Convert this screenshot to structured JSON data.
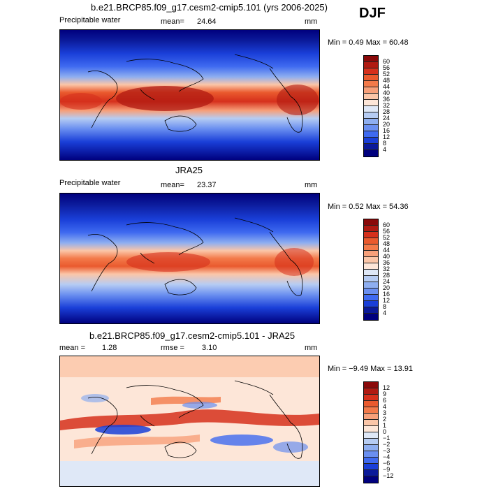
{
  "season": "DJF",
  "panels": [
    {
      "title": "b.e21.BRCP85.f09_g17.cesm2-cmip5.101 (yrs 2006-2025)",
      "left_label": "Precipitable water",
      "mid_label": "mean=",
      "mid_value": "24.64",
      "units": "mm",
      "minmax": "Min =    0.49 Max =   60.48",
      "colorbar": {
        "levels": [
          "60",
          "56",
          "52",
          "48",
          "44",
          "40",
          "36",
          "32",
          "28",
          "24",
          "20",
          "16",
          "12",
          "8",
          "4"
        ],
        "colors": [
          "#8a0a0a",
          "#b01a12",
          "#d6301c",
          "#ea5a2e",
          "#f37a4a",
          "#f7a07a",
          "#fbc6a8",
          "#fde6d8",
          "#dfe8f7",
          "#b6ccf3",
          "#8eaef0",
          "#6a8ff0",
          "#3f6af0",
          "#1a3fd8",
          "#0b1a9a",
          "#00007e"
        ]
      }
    },
    {
      "title": "JRA25",
      "left_label": "Precipitable water",
      "mid_label": "mean=",
      "mid_value": "23.37",
      "units": "mm",
      "minmax": "Min =    0.52 Max =   54.36",
      "colorbar": {
        "levels": [
          "60",
          "56",
          "52",
          "48",
          "44",
          "40",
          "36",
          "32",
          "28",
          "24",
          "20",
          "16",
          "12",
          "8",
          "4"
        ],
        "colors": [
          "#8a0a0a",
          "#b01a12",
          "#d6301c",
          "#ea5a2e",
          "#f37a4a",
          "#f7a07a",
          "#fbc6a8",
          "#fde6d8",
          "#dfe8f7",
          "#b6ccf3",
          "#8eaef0",
          "#6a8ff0",
          "#3f6af0",
          "#1a3fd8",
          "#0b1a9a",
          "#00007e"
        ]
      }
    },
    {
      "title": "b.e21.BRCP85.f09_g17.cesm2-cmip5.101 - JRA25",
      "left_label": "mean =",
      "left_value": "1.28",
      "mid_label": "rmse =",
      "mid_value": "3.10",
      "units": "mm",
      "minmax": "Min =   −9.49 Max =   13.91",
      "colorbar": {
        "levels": [
          "12",
          "9",
          "6",
          "4",
          "3",
          "2",
          "1",
          "0",
          "−1",
          "−2",
          "−3",
          "−4",
          "−6",
          "−9",
          "−12"
        ],
        "colors": [
          "#8a0a0a",
          "#b01a12",
          "#d6301c",
          "#ea5a2e",
          "#f37a4a",
          "#f7a07a",
          "#fbc6a8",
          "#fde6d8",
          "#dfe8f7",
          "#b6ccf3",
          "#8eaef0",
          "#6a8ff0",
          "#3f6af0",
          "#1a3fd8",
          "#0b1a9a",
          "#00007e"
        ]
      }
    }
  ]
}
